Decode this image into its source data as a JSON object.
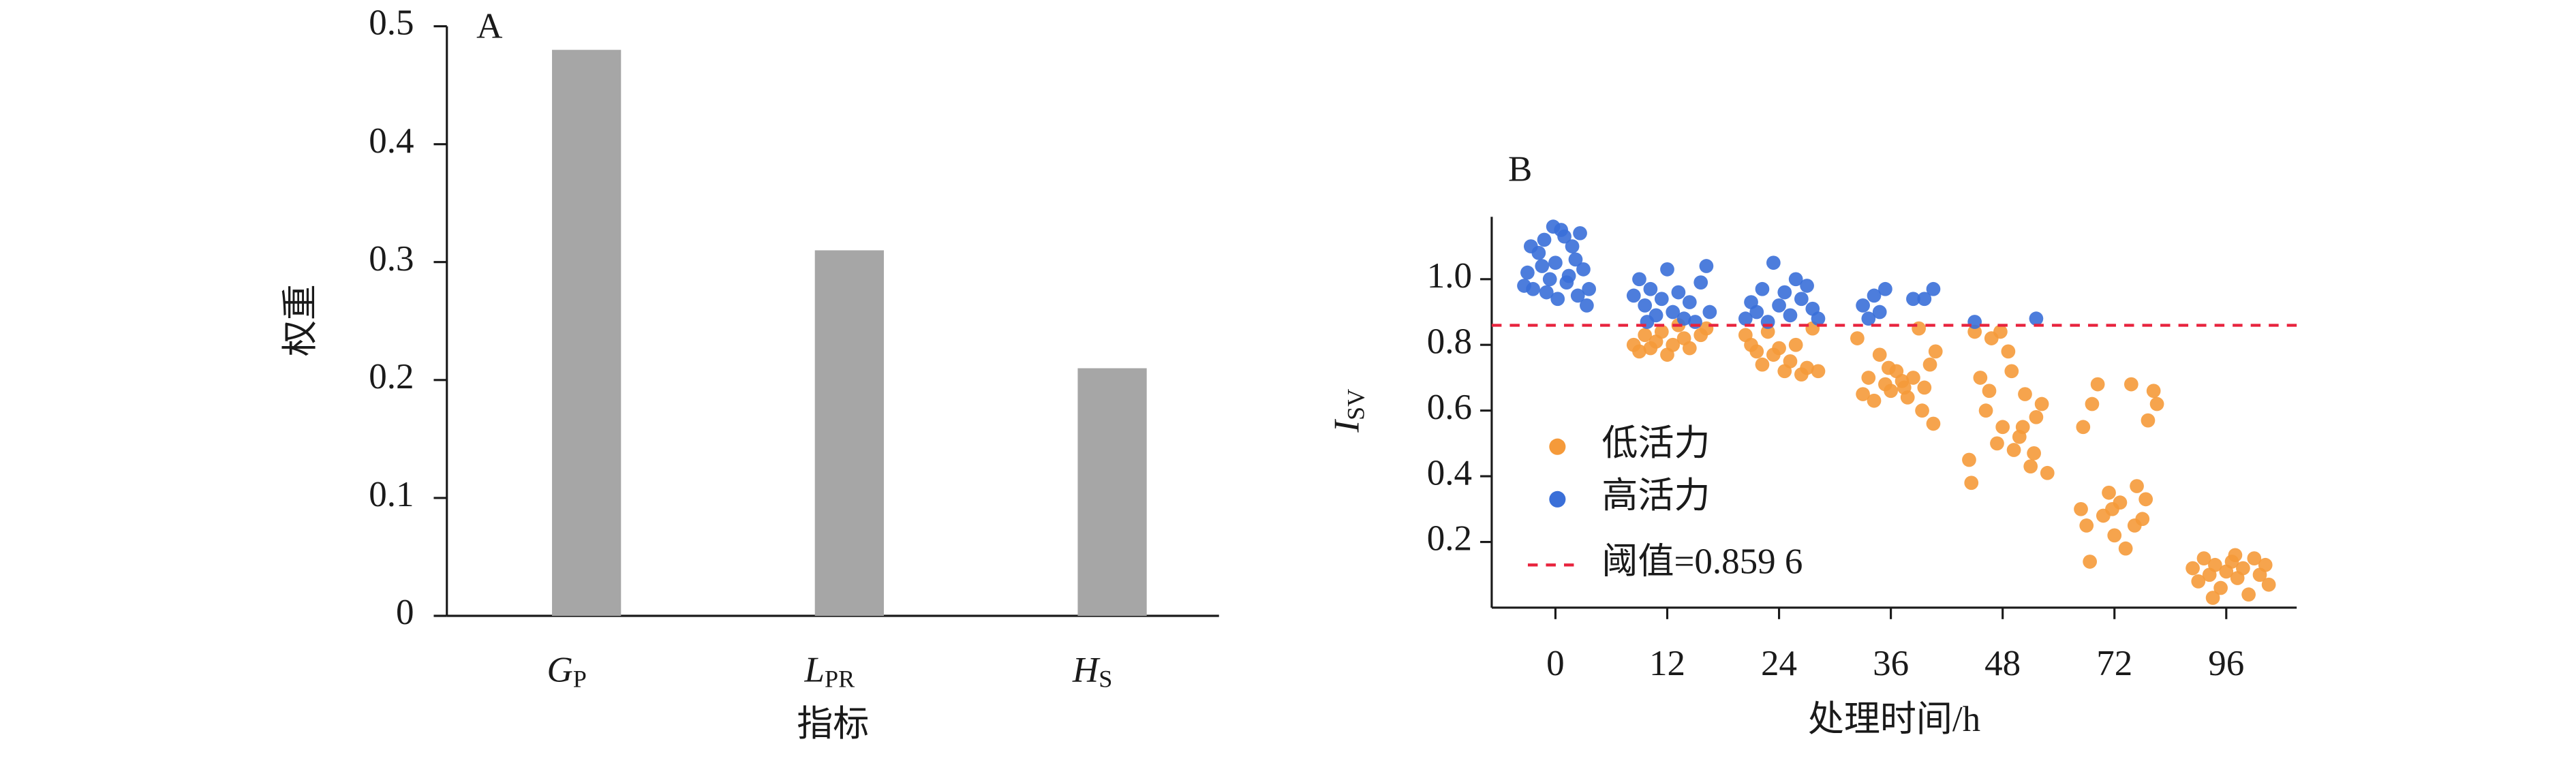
{
  "chart_data": [
    {
      "type": "bar",
      "title": "A",
      "ylabel": "权重",
      "xlabel": "指标",
      "categories": [
        {
          "main": "G",
          "sub": "P"
        },
        {
          "main": "L",
          "sub": "PR"
        },
        {
          "main": "H",
          "sub": "S"
        }
      ],
      "values": [
        0.48,
        0.31,
        0.21
      ],
      "color": "#a6a6a6",
      "ylim": [
        0,
        0.5
      ],
      "yticks": [
        0,
        0.1,
        0.2,
        0.3,
        0.4,
        0.5
      ]
    },
    {
      "type": "scatter",
      "title": "B",
      "ylabel": {
        "main": "I",
        "sub": "SV"
      },
      "xlabel": "处理时间/h",
      "xlim": [
        -0.57,
        6.63
      ],
      "xticks": [
        0,
        {
          "value": 1,
          "label": "12"
        },
        {
          "value": 2,
          "label": "24"
        },
        {
          "value": 3,
          "label": "36"
        },
        {
          "value": 4,
          "label": "48"
        },
        {
          "value": 5,
          "label": "72"
        },
        {
          "value": 6,
          "label": "96"
        }
      ],
      "ylim": [
        0,
        1.19
      ],
      "yticks": [
        0.2,
        0.4,
        0.6,
        0.8,
        {
          "value": 1,
          "label": "1.0"
        }
      ],
      "series": [
        {
          "name": "低活力",
          "color": "#f59a3a",
          "x": [
            0.7,
            0.75,
            0.8,
            0.85,
            0.9,
            0.95,
            1.0,
            1.05,
            1.1,
            1.15,
            1.2,
            1.3,
            1.35,
            1.7,
            1.75,
            1.8,
            1.85,
            1.9,
            1.95,
            2.0,
            2.05,
            2.1,
            2.15,
            2.2,
            2.25,
            2.3,
            2.35,
            2.7,
            2.75,
            2.8,
            2.85,
            2.9,
            2.95,
            3.0,
            3.05,
            3.1,
            3.15,
            3.2,
            3.25,
            3.3,
            3.35,
            3.38,
            3.28,
            3.12,
            2.98,
            3.4,
            3.7,
            3.72,
            3.75,
            3.8,
            3.85,
            3.9,
            3.95,
            4.0,
            4.05,
            4.1,
            4.15,
            4.2,
            4.25,
            4.3,
            4.35,
            4.4,
            3.98,
            4.08,
            4.18,
            3.88,
            4.28,
            4.7,
            4.72,
            4.75,
            4.8,
            4.85,
            4.9,
            4.95,
            5.0,
            5.05,
            5.1,
            5.15,
            5.2,
            5.25,
            5.3,
            5.35,
            5.38,
            4.78,
            4.98,
            5.18,
            5.28,
            5.7,
            5.75,
            5.8,
            5.85,
            5.9,
            5.95,
            6.0,
            6.05,
            6.1,
            6.15,
            6.2,
            6.25,
            6.3,
            6.35,
            6.38,
            5.88,
            6.08
          ],
          "values": [
            0.8,
            0.78,
            0.83,
            0.79,
            0.81,
            0.84,
            0.77,
            0.8,
            0.86,
            0.82,
            0.79,
            0.83,
            0.85,
            0.83,
            0.8,
            0.78,
            0.74,
            0.84,
            0.77,
            0.79,
            0.72,
            0.75,
            0.8,
            0.71,
            0.73,
            0.85,
            0.72,
            0.82,
            0.65,
            0.7,
            0.63,
            0.77,
            0.68,
            0.66,
            0.72,
            0.69,
            0.64,
            0.7,
            0.85,
            0.67,
            0.74,
            0.56,
            0.6,
            0.67,
            0.73,
            0.78,
            0.45,
            0.38,
            0.84,
            0.7,
            0.6,
            0.82,
            0.5,
            0.55,
            0.78,
            0.48,
            0.52,
            0.65,
            0.43,
            0.58,
            0.62,
            0.41,
            0.84,
            0.72,
            0.55,
            0.66,
            0.47,
            0.3,
            0.55,
            0.25,
            0.62,
            0.68,
            0.28,
            0.35,
            0.22,
            0.32,
            0.18,
            0.68,
            0.37,
            0.27,
            0.57,
            0.66,
            0.62,
            0.14,
            0.3,
            0.25,
            0.33,
            0.12,
            0.08,
            0.15,
            0.1,
            0.13,
            0.06,
            0.11,
            0.14,
            0.09,
            0.12,
            0.04,
            0.15,
            0.1,
            0.13,
            0.07,
            0.03,
            0.16
          ]
        },
        {
          "name": "高活力",
          "color": "#3a6fd8",
          "x": [
            -0.25,
            -0.2,
            -0.15,
            -0.1,
            -0.05,
            0,
            0.05,
            0.1,
            0.15,
            0.2,
            0.25,
            -0.22,
            -0.12,
            0.02,
            0.08,
            0.18,
            0.28,
            -0.28,
            0.12,
            -0.02,
            0.22,
            -0.08,
            0.3,
            0.7,
            0.75,
            0.8,
            0.85,
            0.9,
            0.95,
            1.0,
            1.05,
            1.1,
            1.15,
            1.2,
            1.25,
            1.3,
            1.35,
            0.82,
            1.38,
            1.7,
            1.75,
            1.8,
            1.85,
            1.9,
            1.95,
            2.0,
            2.05,
            2.1,
            2.15,
            2.2,
            2.25,
            2.3,
            2.35,
            2.75,
            2.8,
            2.85,
            2.9,
            2.95,
            3.2,
            3.3,
            3.38,
            3.75,
            4.3
          ],
          "values": [
            1.02,
            0.97,
            1.08,
            1.12,
            1.0,
            1.05,
            1.15,
            0.99,
            1.1,
            0.95,
            1.03,
            1.1,
            1.04,
            0.94,
            1.13,
            1.06,
            0.92,
            0.98,
            1.01,
            1.16,
            1.14,
            0.96,
            0.97,
            0.95,
            1.0,
            0.92,
            0.97,
            0.89,
            0.94,
            1.03,
            0.9,
            0.96,
            0.88,
            0.93,
            0.87,
            0.99,
            1.04,
            0.87,
            0.9,
            0.88,
            0.93,
            0.9,
            0.97,
            0.87,
            1.05,
            0.92,
            0.96,
            0.89,
            1.0,
            0.94,
            0.98,
            0.91,
            0.88,
            0.92,
            0.88,
            0.95,
            0.9,
            0.97,
            0.94,
            0.94,
            0.97,
            0.87,
            0.88
          ]
        }
      ],
      "threshold": {
        "name": "阈值=0.859 6",
        "value": 0.8596,
        "color": "#e8233d"
      }
    }
  ]
}
